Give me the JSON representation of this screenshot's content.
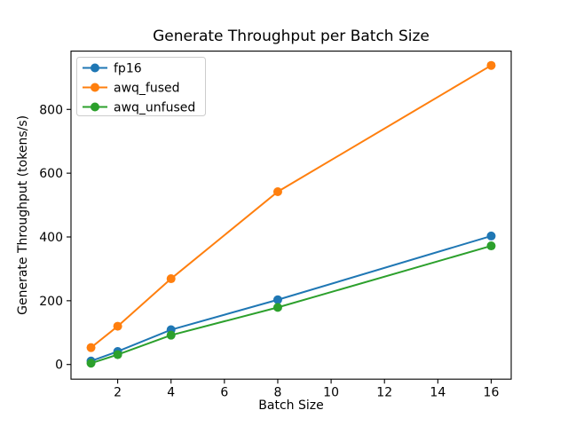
{
  "figure": {
    "background": "#ffffff",
    "spine_color": "#000000",
    "legend_border_color": "#cccccc"
  },
  "chart_data": {
    "type": "line",
    "title": "Generate Throughput per Batch Size",
    "xlabel": "Batch Size",
    "ylabel": "Generate Throughput (tokens/s)",
    "x": [
      1,
      2,
      4,
      8,
      16
    ],
    "series": [
      {
        "name": "fp16",
        "color": "#1f77b4",
        "values": [
          11,
          41,
          109,
          203,
          403
        ]
      },
      {
        "name": "awq_fused",
        "color": "#ff7f0e",
        "values": [
          53,
          120,
          269,
          542,
          938
        ]
      },
      {
        "name": "awq_unfused",
        "color": "#2ca02c",
        "values": [
          4,
          31,
          92,
          179,
          372
        ]
      }
    ],
    "xticks": [
      2,
      4,
      6,
      8,
      10,
      12,
      14,
      16
    ],
    "yticks": [
      0,
      200,
      400,
      600,
      800
    ],
    "xlim": [
      0.25,
      16.75
    ],
    "ylim": [
      -45.9,
      982.8
    ],
    "grid": false,
    "legend_position": "upper left",
    "marker": "o"
  }
}
